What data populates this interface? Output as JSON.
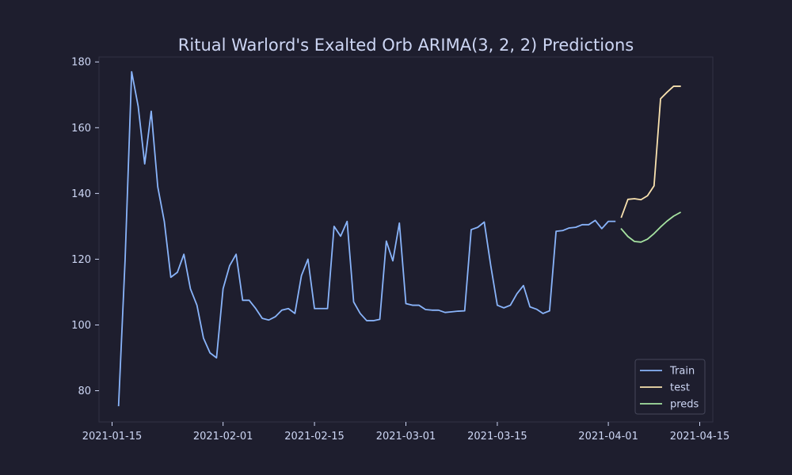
{
  "chart_data": {
    "type": "line",
    "title": "Ritual Warlord's Exalted Orb ARIMA(3, 2, 2) Predictions",
    "xlabel": "",
    "ylabel": "",
    "x_axis": {
      "type": "date",
      "range": [
        "2021-01-13",
        "2021-04-17"
      ],
      "ticks": [
        "2021-01-15",
        "2021-02-01",
        "2021-02-15",
        "2021-03-01",
        "2021-03-15",
        "2021-04-01",
        "2021-04-15"
      ]
    },
    "y_axis": {
      "range": [
        70.5,
        181.5
      ],
      "ticks": [
        80,
        100,
        120,
        140,
        160,
        180
      ]
    },
    "grid": false,
    "legend_position": "bottom-right",
    "colors": {
      "background": "#1e1e2e",
      "axes_edge": "#313244",
      "text": "#cdd6f4",
      "legend_bg": "#1e1e2e",
      "legend_edge": "#45475a"
    },
    "series": [
      {
        "name": "Train",
        "color": "#89b4fa",
        "points": [
          [
            "2021-01-16",
            75.5
          ],
          [
            "2021-01-17",
            120
          ],
          [
            "2021-01-18",
            177
          ],
          [
            "2021-01-19",
            166.5
          ],
          [
            "2021-01-20",
            149
          ],
          [
            "2021-01-21",
            165
          ],
          [
            "2021-01-22",
            142
          ],
          [
            "2021-01-23",
            131.5
          ],
          [
            "2021-01-24",
            114.5
          ],
          [
            "2021-01-25",
            116
          ],
          [
            "2021-01-26",
            121.5
          ],
          [
            "2021-01-27",
            111
          ],
          [
            "2021-01-28",
            106
          ],
          [
            "2021-01-29",
            96
          ],
          [
            "2021-01-30",
            91.5
          ],
          [
            "2021-01-31",
            90
          ],
          [
            "2021-02-01",
            111
          ],
          [
            "2021-02-02",
            118
          ],
          [
            "2021-02-03",
            121.5
          ],
          [
            "2021-02-04",
            107.5
          ],
          [
            "2021-02-05",
            107.5
          ],
          [
            "2021-02-06",
            105
          ],
          [
            "2021-02-07",
            102
          ],
          [
            "2021-02-08",
            101.5
          ],
          [
            "2021-02-09",
            102.5
          ],
          [
            "2021-02-10",
            104.5
          ],
          [
            "2021-02-11",
            105
          ],
          [
            "2021-02-12",
            103.5
          ],
          [
            "2021-02-13",
            115
          ],
          [
            "2021-02-14",
            120
          ],
          [
            "2021-02-15",
            105
          ],
          [
            "2021-02-16",
            105
          ],
          [
            "2021-02-17",
            105
          ],
          [
            "2021-02-18",
            130
          ],
          [
            "2021-02-19",
            127
          ],
          [
            "2021-02-20",
            131.5
          ],
          [
            "2021-02-21",
            107
          ],
          [
            "2021-02-22",
            103.5
          ],
          [
            "2021-02-23",
            101.3
          ],
          [
            "2021-02-24",
            101.3
          ],
          [
            "2021-02-25",
            101.7
          ],
          [
            "2021-02-26",
            125.5
          ],
          [
            "2021-02-27",
            119.5
          ],
          [
            "2021-02-28",
            131
          ],
          [
            "2021-03-01",
            106.5
          ],
          [
            "2021-03-02",
            106
          ],
          [
            "2021-03-03",
            106
          ],
          [
            "2021-03-04",
            104.7
          ],
          [
            "2021-03-05",
            104.5
          ],
          [
            "2021-03-06",
            104.5
          ],
          [
            "2021-03-07",
            103.8
          ],
          [
            "2021-03-08",
            104
          ],
          [
            "2021-03-09",
            104.2
          ],
          [
            "2021-03-10",
            104.3
          ],
          [
            "2021-03-11",
            129
          ],
          [
            "2021-03-12",
            129.7
          ],
          [
            "2021-03-13",
            131.3
          ],
          [
            "2021-03-14",
            118
          ],
          [
            "2021-03-15",
            106
          ],
          [
            "2021-03-16",
            105.2
          ],
          [
            "2021-03-17",
            106
          ],
          [
            "2021-03-18",
            109.5
          ],
          [
            "2021-03-19",
            112
          ],
          [
            "2021-03-20",
            105.5
          ],
          [
            "2021-03-21",
            104.8
          ],
          [
            "2021-03-22",
            103.5
          ],
          [
            "2021-03-23",
            104.3
          ],
          [
            "2021-03-24",
            128.5
          ],
          [
            "2021-03-25",
            128.7
          ],
          [
            "2021-03-26",
            129.5
          ],
          [
            "2021-03-27",
            129.7
          ],
          [
            "2021-03-28",
            130.5
          ],
          [
            "2021-03-29",
            130.5
          ],
          [
            "2021-03-30",
            131.8
          ],
          [
            "2021-03-31",
            129.3
          ],
          [
            "2021-04-01",
            131.5
          ],
          [
            "2021-04-02",
            131.5
          ]
        ]
      },
      {
        "name": "test",
        "color": "#f9e2af",
        "points": [
          [
            "2021-04-03",
            132.8
          ],
          [
            "2021-04-04",
            138.2
          ],
          [
            "2021-04-05",
            138.4
          ],
          [
            "2021-04-06",
            138.1
          ],
          [
            "2021-04-07",
            139.3
          ],
          [
            "2021-04-08",
            142.3
          ],
          [
            "2021-04-09",
            168.8
          ],
          [
            "2021-04-10",
            170.8
          ],
          [
            "2021-04-11",
            172.6
          ],
          [
            "2021-04-12",
            172.6
          ]
        ]
      },
      {
        "name": "preds",
        "color": "#a6e3a1",
        "points": [
          [
            "2021-04-03",
            129.2
          ],
          [
            "2021-04-04",
            126.9
          ],
          [
            "2021-04-05",
            125.4
          ],
          [
            "2021-04-06",
            125.2
          ],
          [
            "2021-04-07",
            126.1
          ],
          [
            "2021-04-08",
            127.8
          ],
          [
            "2021-04-09",
            129.8
          ],
          [
            "2021-04-10",
            131.6
          ],
          [
            "2021-04-11",
            133.1
          ],
          [
            "2021-04-12",
            134.2
          ]
        ]
      }
    ]
  }
}
